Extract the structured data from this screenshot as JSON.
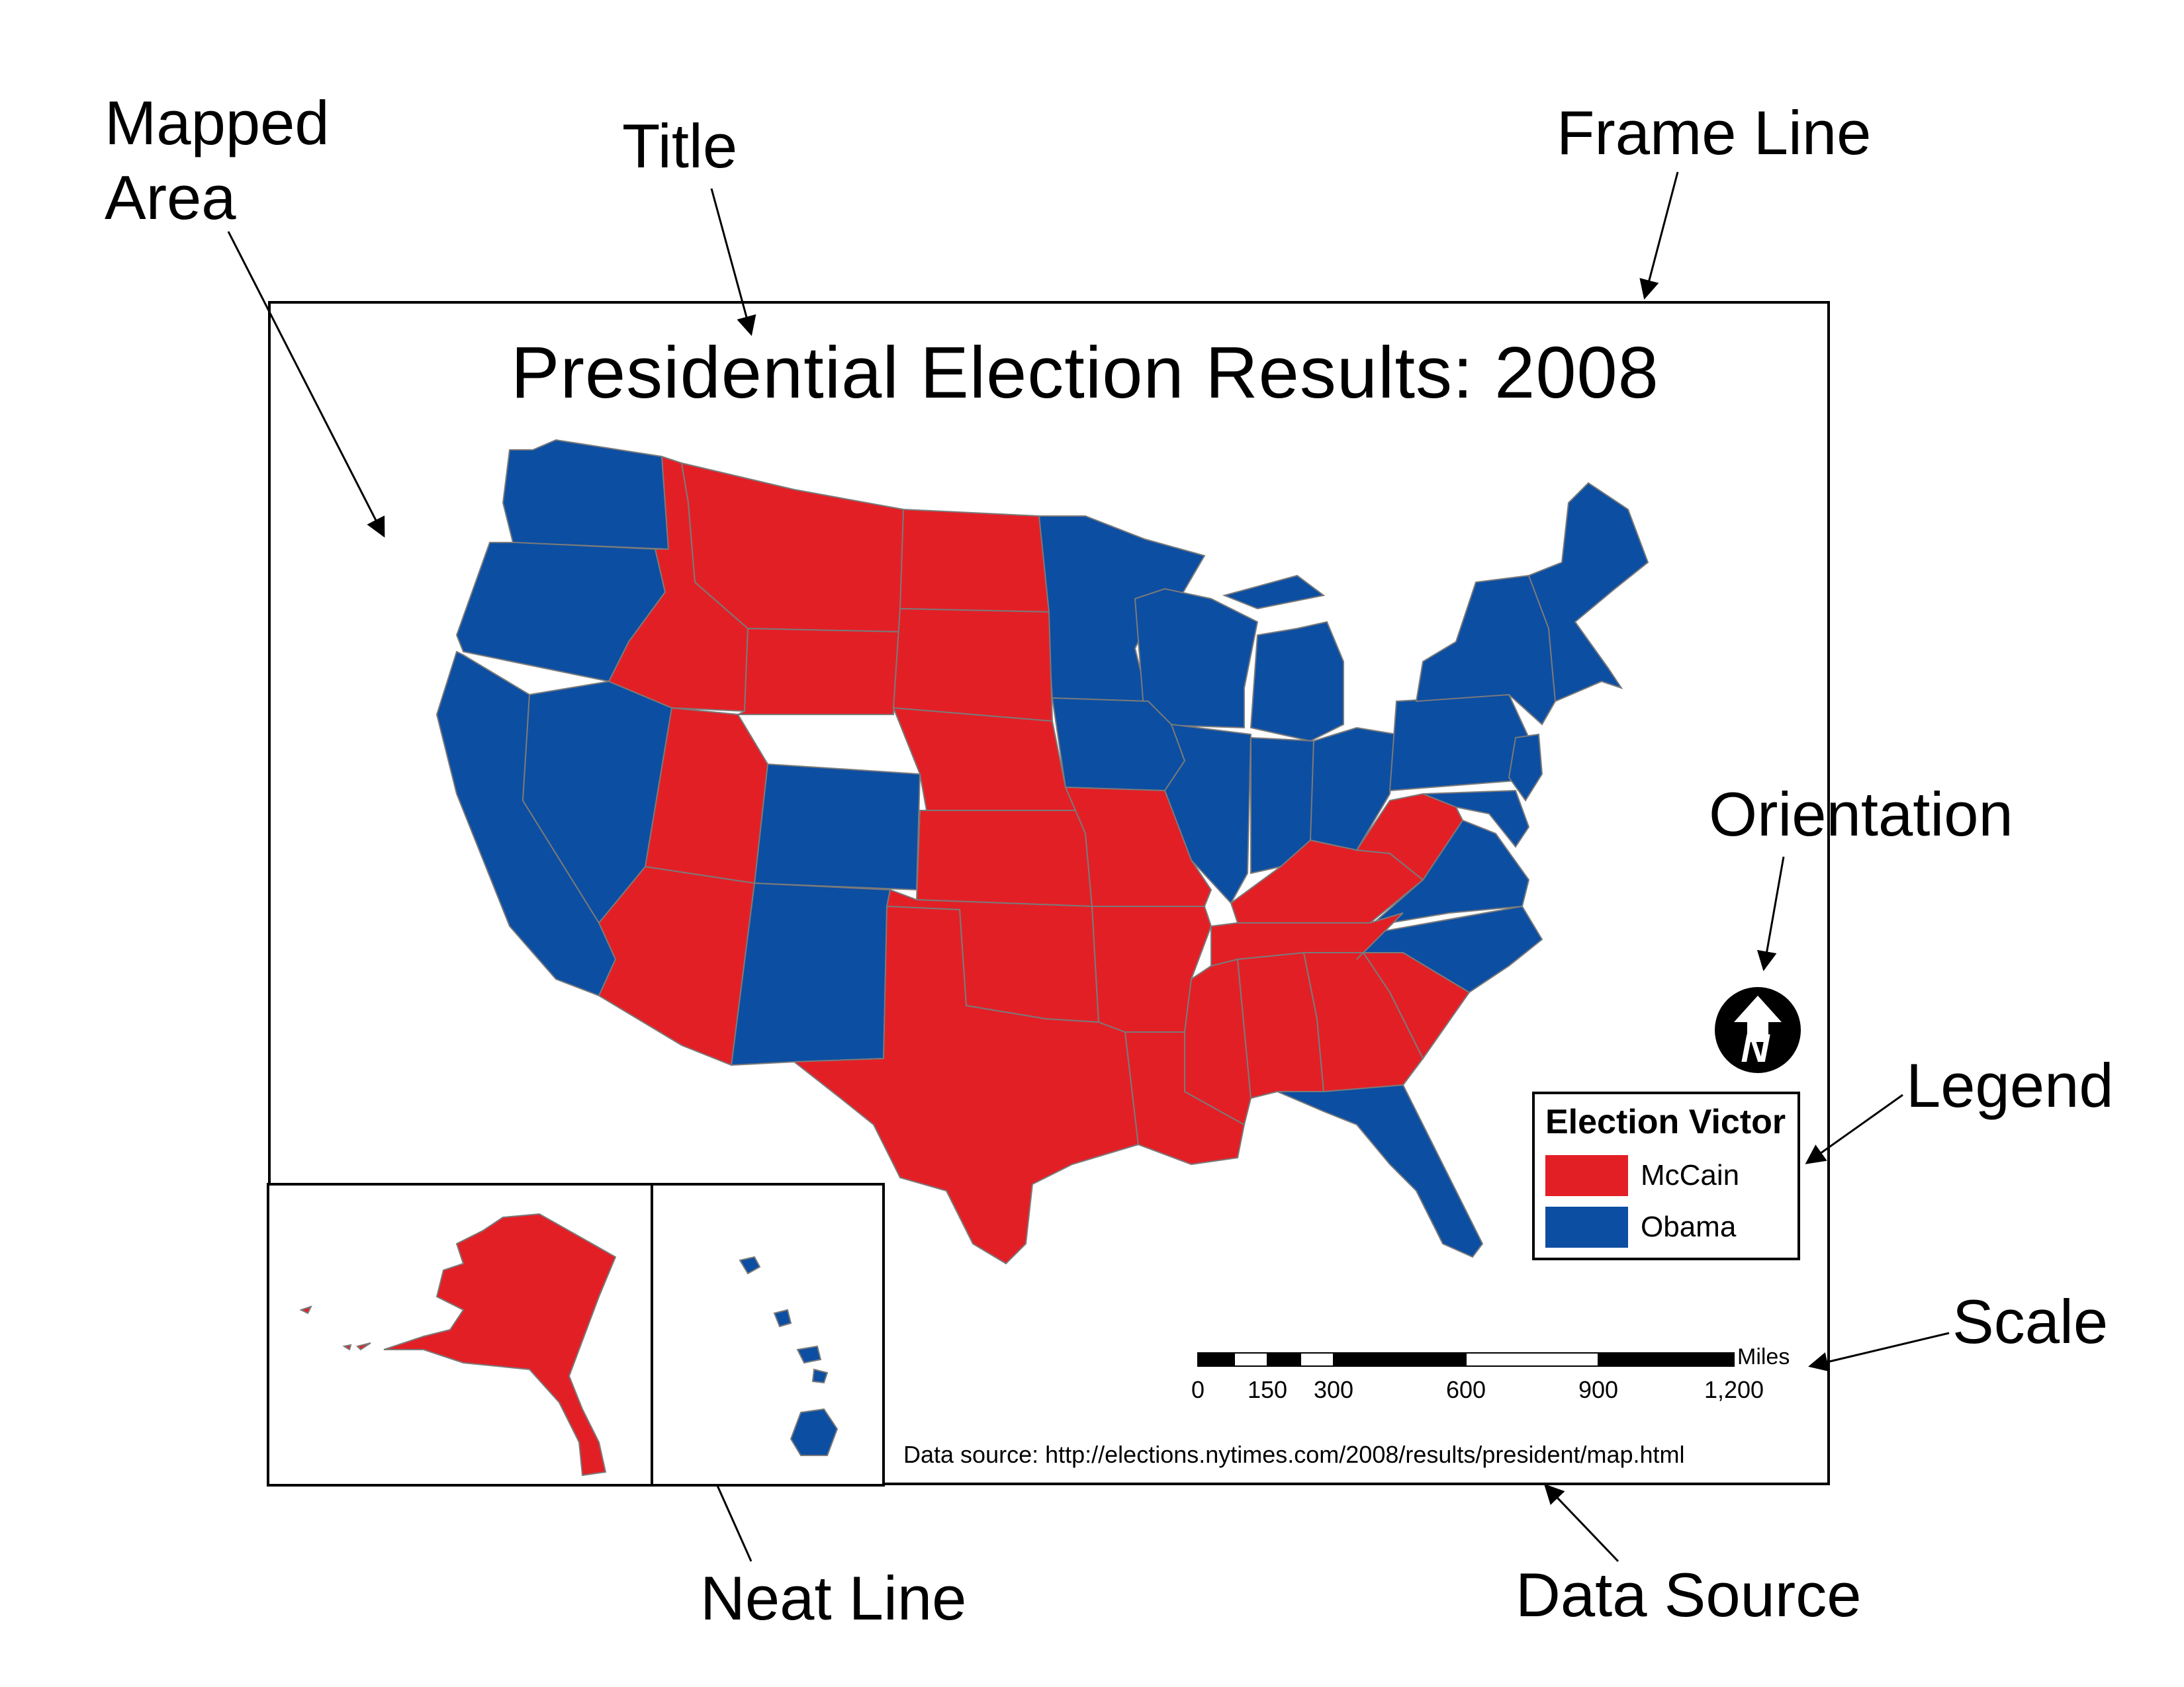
{
  "callouts": {
    "mapped_area": "Mapped\nArea",
    "title": "Title",
    "frame_line": "Frame Line",
    "orientation": "Orientation",
    "legend": "Legend",
    "scale": "Scale",
    "neat_line": "Neat Line",
    "data_source": "Data Source"
  },
  "map": {
    "title": "Presidential Election Results: 2008",
    "north_arrow_letter": "N",
    "north_arrow_icon": "north-arrow-icon"
  },
  "legend": {
    "title": "Election Victor",
    "items": [
      {
        "label": "McCain",
        "color": "#e31f26"
      },
      {
        "label": "Obama",
        "color": "#0c4ea2"
      }
    ]
  },
  "scale_bar": {
    "unit": "Miles",
    "ticks": [
      "0",
      "150",
      "300",
      "600",
      "900",
      "1,200"
    ]
  },
  "data_source": "Data source: http://elections.nytimes.com/2008/results/president/map.html",
  "colors": {
    "mccain": "#e31f26",
    "obama": "#0c4ea2",
    "state_border": "#7a7a7a"
  }
}
